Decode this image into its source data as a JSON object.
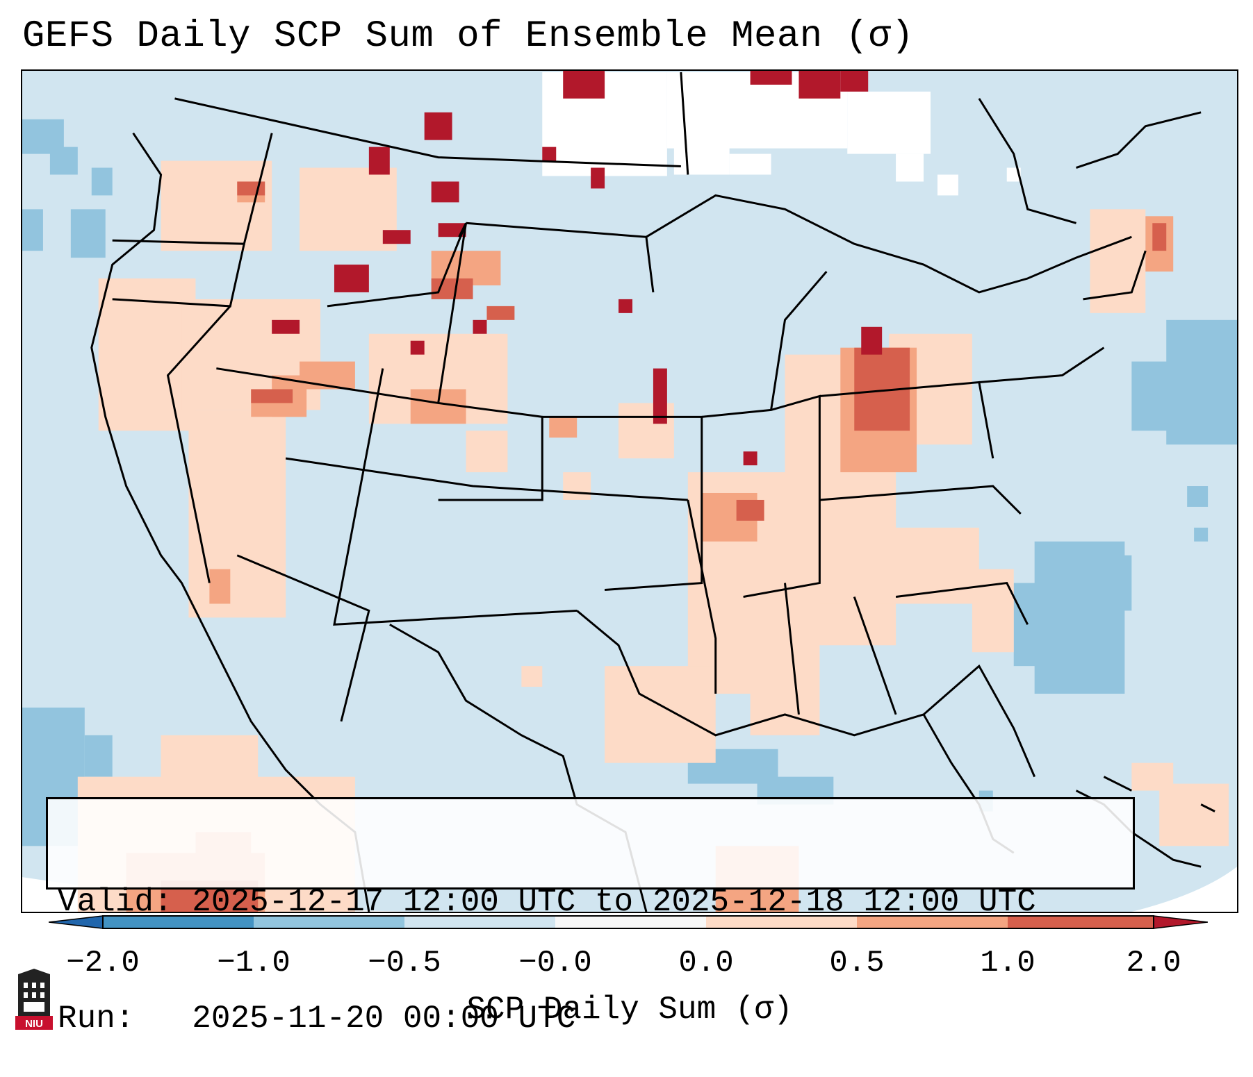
{
  "title": "GEFS Daily SCP Sum of Ensemble Mean (σ)",
  "info": {
    "valid_line": "Valid: 2025-12-17 12:00 UTC to 2025-12-18 12:00 UTC",
    "run_line": "Run:   2025-11-20 00:00 UTC"
  },
  "colorbar": {
    "label": "SCP Daily Sum (σ)",
    "ticks": [
      "−2.0",
      "−1.0",
      "−0.5",
      "−0.0",
      "0.0",
      "0.5",
      "1.0",
      "2.0"
    ],
    "colors": [
      "#4a8cc3",
      "#92c4de",
      "#d1e5f0",
      "#f7f7f7",
      "#fddbc7",
      "#f4a582",
      "#d6604d",
      "#b2182b"
    ]
  },
  "logo": {
    "text": "NIU",
    "icon": "university-tower-icon"
  }
}
